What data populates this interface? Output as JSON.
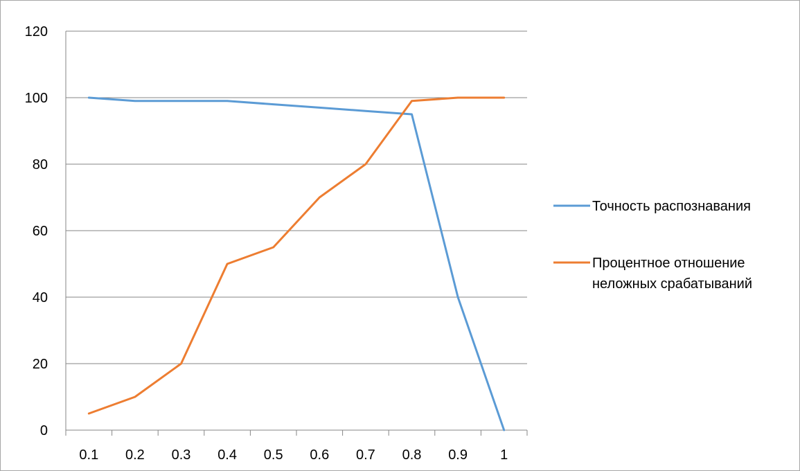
{
  "chart_data": {
    "type": "line",
    "title": "",
    "xlabel": "",
    "ylabel": "",
    "categories": [
      "0.1",
      "0.2",
      "0.3",
      "0.4",
      "0.5",
      "0.6",
      "0.7",
      "0.8",
      "0.9",
      "1"
    ],
    "ylim": [
      0,
      120
    ],
    "yticks": [
      "0",
      "20",
      "40",
      "60",
      "80",
      "100",
      "120"
    ],
    "grid": true,
    "legend_position": "right",
    "series": [
      {
        "name": "Точность распознавания",
        "legend_lines": [
          "Точность распознавания"
        ],
        "color": "#5b9bd5",
        "values": [
          100,
          99,
          99,
          99,
          98,
          97,
          96,
          95,
          40,
          0
        ]
      },
      {
        "name": "Процентное отношение неложных срабатываний",
        "legend_lines": [
          "Процентное отношение",
          "неложных срабатываний"
        ],
        "color": "#ed7d31",
        "values": [
          5,
          10,
          20,
          50,
          55,
          70,
          80,
          99,
          100,
          100
        ]
      }
    ]
  }
}
